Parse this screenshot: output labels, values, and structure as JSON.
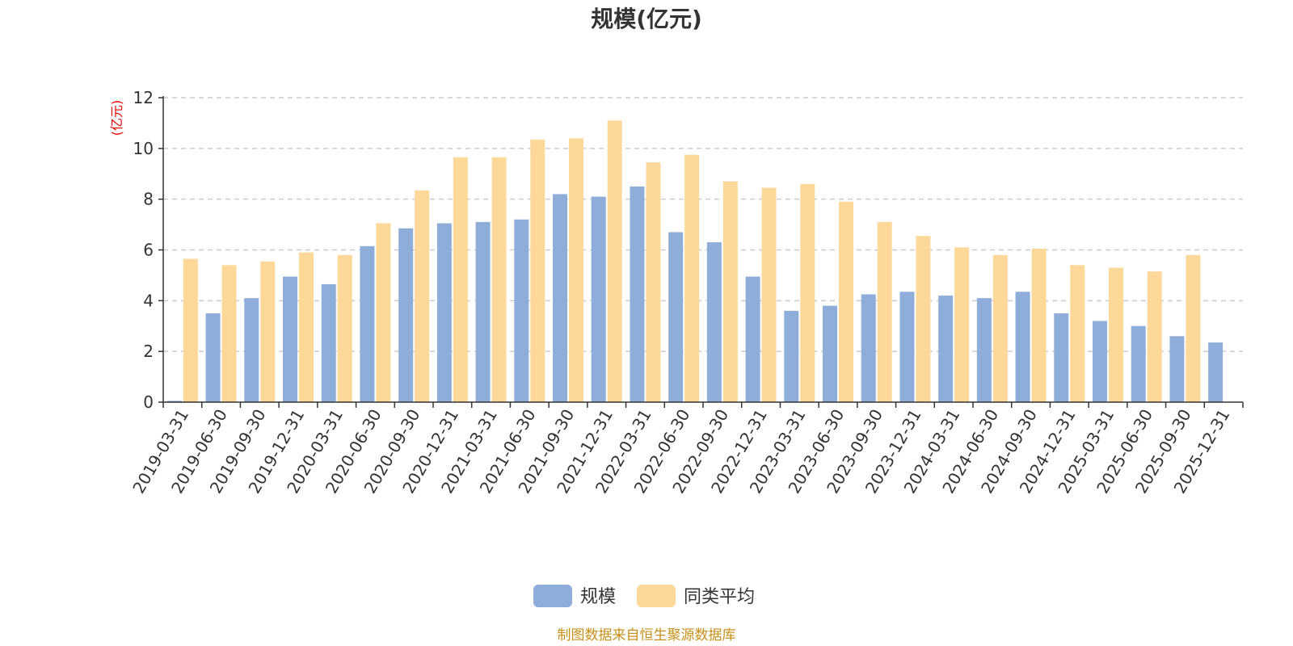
{
  "chart_data": {
    "type": "bar",
    "title": "规模(亿元)",
    "ylabel": "(亿元)",
    "ylim": [
      0,
      12
    ],
    "yticks": [
      0,
      2,
      4,
      6,
      8,
      10,
      12
    ],
    "grid": true,
    "legend_position": "bottom-center",
    "categories": [
      "2019-03-31",
      "2019-06-30",
      "2019-09-30",
      "2019-12-31",
      "2020-03-31",
      "2020-06-30",
      "2020-09-30",
      "2020-12-31",
      "2021-03-31",
      "2021-06-30",
      "2021-09-30",
      "2021-12-31",
      "2022-03-31",
      "2022-06-30",
      "2022-09-30",
      "2022-12-31",
      "2023-03-31",
      "2023-06-30",
      "2023-09-30",
      "2023-12-31",
      "2024-03-31",
      "2024-06-30",
      "2024-09-30",
      "2024-12-31",
      "2025-03-31",
      "2025-06-30",
      "2025-09-30",
      "2025-12-31"
    ],
    "series": [
      {
        "name": "规模",
        "color": "#8eadd9",
        "values": [
          0.05,
          3.5,
          4.1,
          4.95,
          4.65,
          6.15,
          6.85,
          7.05,
          7.1,
          7.2,
          8.2,
          8.1,
          8.5,
          6.7,
          6.3,
          4.95,
          3.6,
          3.8,
          4.25,
          4.35,
          4.2,
          4.1,
          4.35,
          3.5,
          3.2,
          3.0,
          2.6,
          2.35
        ]
      },
      {
        "name": "同类平均",
        "color": "#fdd899",
        "values": [
          5.65,
          5.4,
          5.55,
          5.9,
          5.8,
          7.05,
          8.35,
          9.65,
          9.65,
          10.35,
          10.4,
          11.1,
          9.45,
          9.75,
          8.7,
          8.45,
          8.6,
          7.9,
          7.1,
          6.55,
          6.1,
          5.8,
          6.05,
          5.4,
          5.3,
          5.15,
          5.8,
          null
        ]
      }
    ],
    "source": "制图数据来自恒生聚源数据库"
  }
}
